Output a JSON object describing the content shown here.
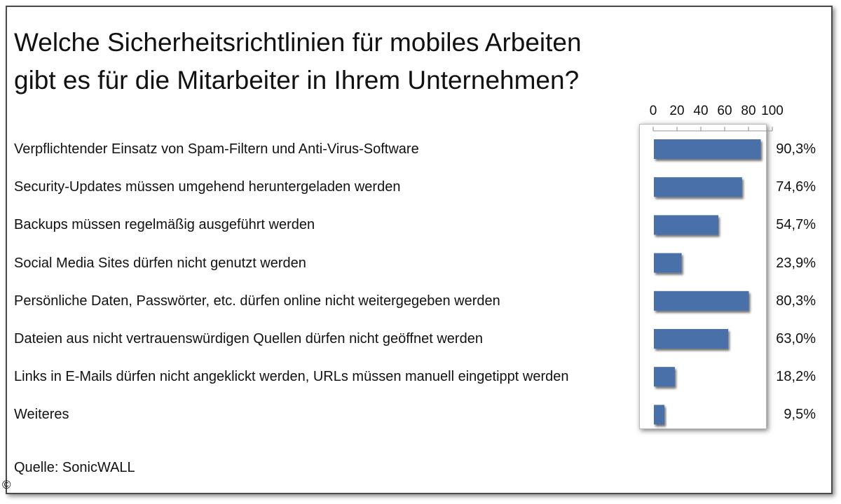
{
  "chart_data": {
    "type": "bar",
    "orientation": "horizontal",
    "title_lines": [
      "Welche Sicherheitsrichtlinien für mobiles Arbeiten",
      "gibt es für die Mitarbeiter in Ihrem Unternehmen?"
    ],
    "categories": [
      "Verpflichtender Einsatz von Spam-Filtern und Anti-Virus-Software",
      "Security-Updates müssen umgehend heruntergeladen werden",
      "Backups müssen regelmäßig ausgeführt werden",
      "Social Media Sites dürfen nicht genutzt werden",
      "Persönliche Daten, Passwörter, etc. dürfen online nicht weitergegeben werden",
      "Dateien aus nicht vertrauenswürdigen Quellen dürfen nicht geöffnet werden",
      "Links in E-Mails dürfen nicht angeklickt werden, URLs müssen manuell eingetippt werden",
      "Weiteres"
    ],
    "values": [
      90.3,
      74.6,
      54.7,
      23.9,
      80.3,
      63.0,
      18.2,
      9.5
    ],
    "value_labels": [
      "90,3%",
      "74,6%",
      "54,7%",
      "23,9%",
      "80,3%",
      "63,0%",
      "18,2%",
      "9,5%"
    ],
    "xlim": [
      0,
      100
    ],
    "x_ticks": [
      "0",
      "20",
      "40",
      "60",
      "80",
      "100"
    ],
    "x_tick_values": [
      0,
      20,
      40,
      60,
      80,
      100
    ],
    "bar_color": "#4a6fa8",
    "grid": false,
    "legend": "none"
  },
  "source": "Quelle: SonicWALL",
  "copyright_symbol": "©"
}
